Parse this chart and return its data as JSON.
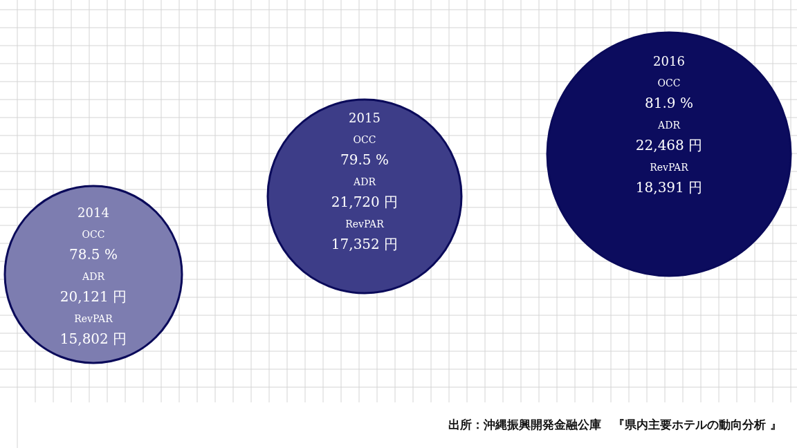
{
  "chart_data": {
    "type": "other",
    "categories": [
      "2014",
      "2015",
      "2016"
    ],
    "series": [
      {
        "name": "OCC",
        "colors": [
          "#7d7db0",
          "#3d3d88",
          "#0c0c5e"
        ],
        "values": [
          78.5,
          79.5,
          81.9
        ],
        "value_labels": [
          "78.5 %",
          "79.5 %",
          "81.9 %"
        ]
      },
      {
        "name": "ADR",
        "values": [
          20121,
          21720,
          22468
        ],
        "value_labels": [
          "20,121 円",
          "21,720 円",
          "22,468 円"
        ]
      },
      {
        "name": "RevPAR",
        "values": [
          15802,
          17352,
          18391
        ],
        "value_labels": [
          "15,802 円",
          "17,352 円",
          "18,391 円"
        ]
      }
    ],
    "annotations": [
      "出所：沖縄振興開発金融公庫　『県内主要ホテルの動向分析 』"
    ]
  }
}
